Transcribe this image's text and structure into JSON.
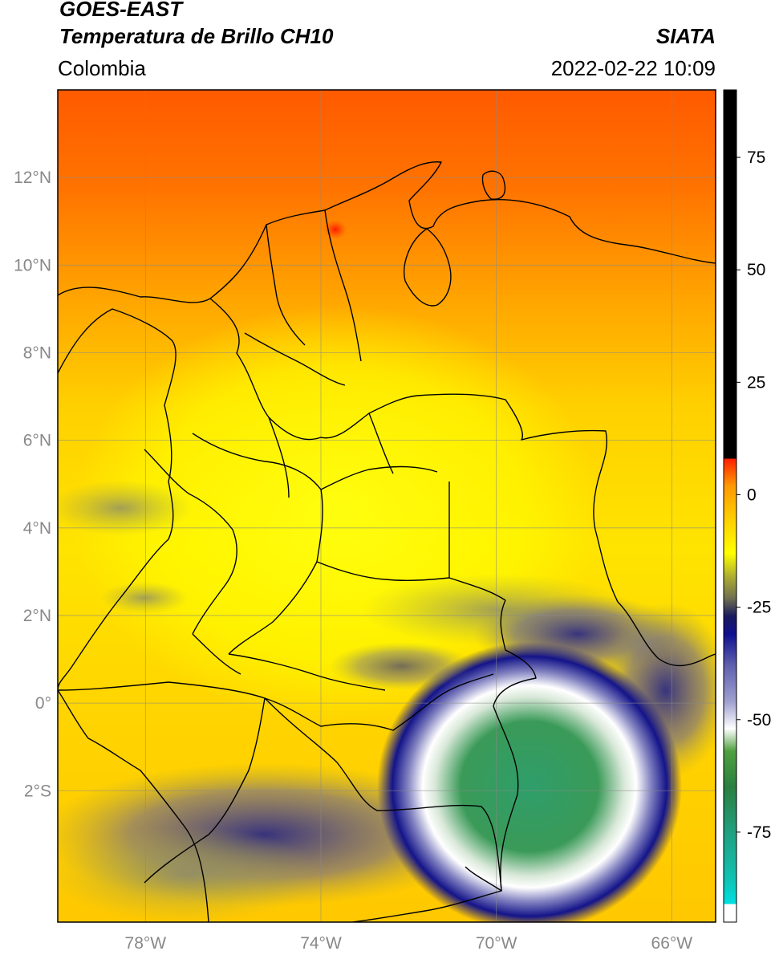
{
  "header": {
    "satellite": "GOES-EAST",
    "product": "Temperatura de Brillo CH10",
    "region": "Colombia",
    "source": "SIATA",
    "datetime": "2022-02-22 10:09"
  },
  "map": {
    "extent": {
      "lon_min": -80.0,
      "lon_max": -65.0,
      "lat_min": -5.0,
      "lat_max": 14.0
    },
    "lon_ticks": [
      {
        "value": -78,
        "label": "78°W"
      },
      {
        "value": -74,
        "label": "74°W"
      },
      {
        "value": -70,
        "label": "70°W"
      },
      {
        "value": -66,
        "label": "66°W"
      }
    ],
    "lat_ticks": [
      {
        "value": 12,
        "label": "12°N"
      },
      {
        "value": 10,
        "label": "10°N"
      },
      {
        "value": 8,
        "label": "8°N"
      },
      {
        "value": 6,
        "label": "6°N"
      },
      {
        "value": 4,
        "label": "4°N"
      },
      {
        "value": 2,
        "label": "2°N"
      },
      {
        "value": 0,
        "label": "0°"
      },
      {
        "value": -2,
        "label": "2°S"
      }
    ],
    "grid": true
  },
  "colorbar": {
    "min": -95,
    "max": 90,
    "ticks": [
      {
        "value": 75,
        "label": "75"
      },
      {
        "value": 50,
        "label": "50"
      },
      {
        "value": 25,
        "label": "25"
      },
      {
        "value": 0,
        "label": "0"
      },
      {
        "value": -25,
        "label": "-25"
      },
      {
        "value": -50,
        "label": "-50"
      },
      {
        "value": -75,
        "label": "-75"
      }
    ],
    "stops": [
      {
        "value": -95,
        "color": "#ffffff"
      },
      {
        "value": -91,
        "color": "#ffffff"
      },
      {
        "value": -91,
        "color": "#00e0e0"
      },
      {
        "value": -85,
        "color": "#10c0b0"
      },
      {
        "value": -75,
        "color": "#20a080"
      },
      {
        "value": -65,
        "color": "#2a8040"
      },
      {
        "value": -57,
        "color": "#50a040"
      },
      {
        "value": -52,
        "color": "#ffffff"
      },
      {
        "value": -46,
        "color": "#a0a0d0"
      },
      {
        "value": -38,
        "color": "#6060b0"
      },
      {
        "value": -31,
        "color": "#101090"
      },
      {
        "value": -27,
        "color": "#1a1a60"
      },
      {
        "value": -23,
        "color": "#707050"
      },
      {
        "value": -18,
        "color": "#b0b030"
      },
      {
        "value": -13,
        "color": "#ffff00"
      },
      {
        "value": -5,
        "color": "#ffcc00"
      },
      {
        "value": 2,
        "color": "#ff9900"
      },
      {
        "value": 8,
        "color": "#ff2000"
      },
      {
        "value": 8,
        "color": "#000000"
      },
      {
        "value": 90,
        "color": "#000000"
      }
    ]
  }
}
